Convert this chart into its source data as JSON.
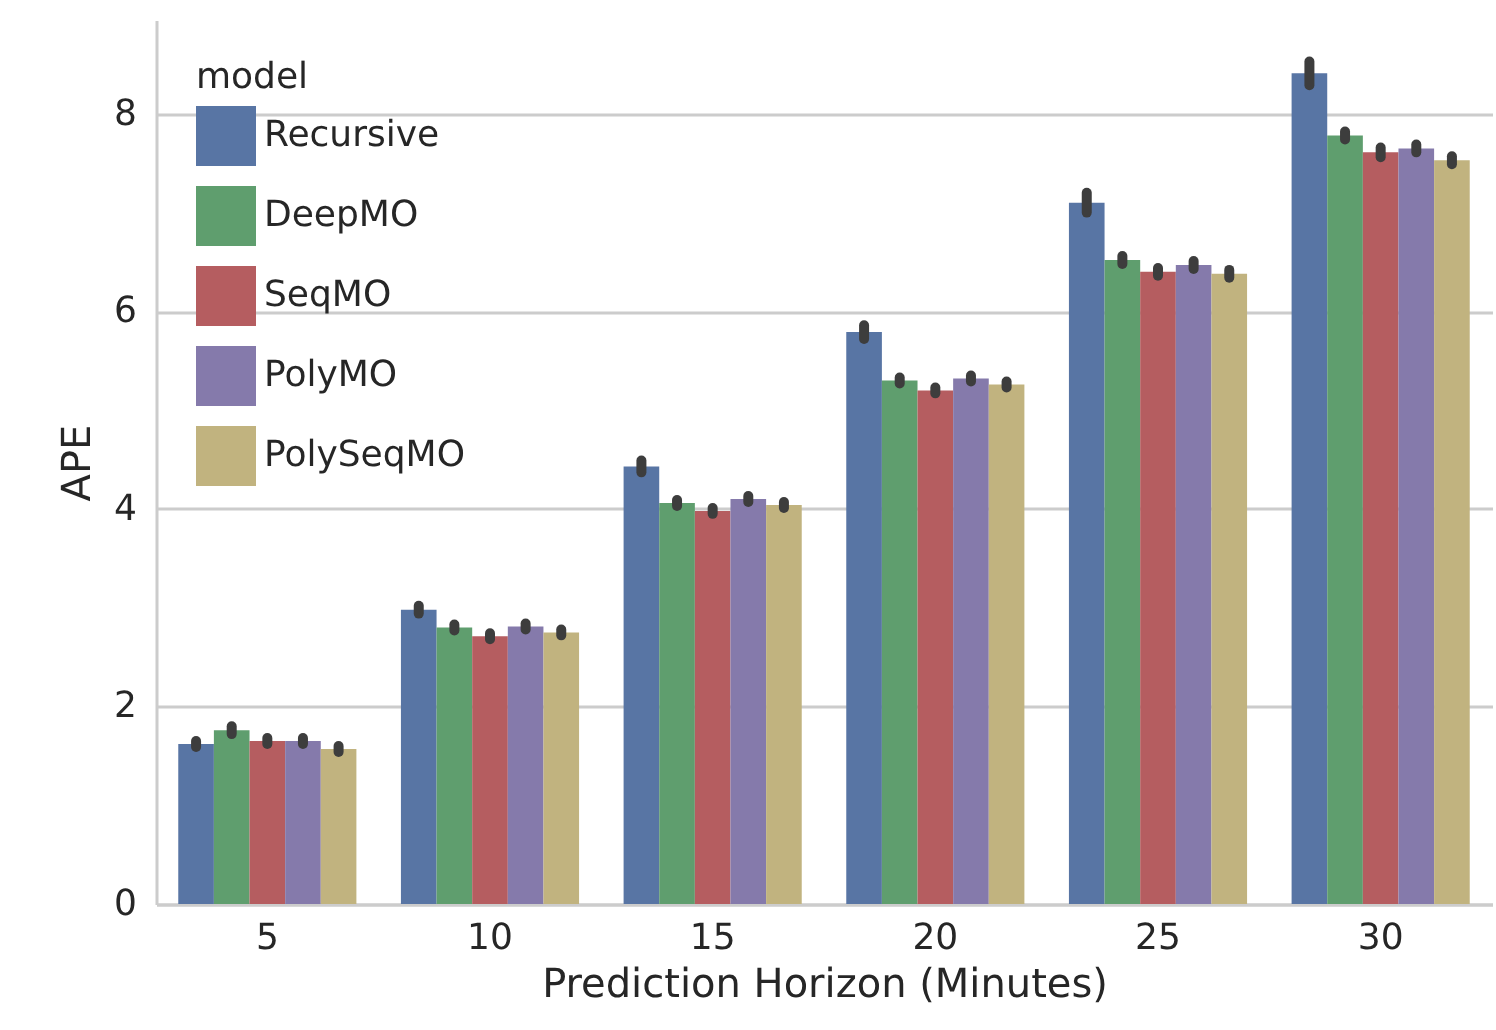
{
  "chart_data": {
    "type": "bar",
    "xlabel": "Prediction Horizon (Minutes)",
    "ylabel": "APE",
    "legend_title": "model",
    "legend": "top left",
    "grid": "y",
    "categories": [
      "5",
      "10",
      "15",
      "20",
      "25",
      "30"
    ],
    "ylim": [
      0,
      8.95
    ],
    "yticks": [
      0,
      2,
      4,
      6,
      8
    ],
    "series": [
      {
        "name": "Recursive",
        "color": "#5875a4",
        "values": [
          1.62,
          2.98,
          4.43,
          5.79,
          7.1,
          8.41
        ],
        "errors": [
          0.03,
          0.04,
          0.06,
          0.07,
          0.1,
          0.12
        ]
      },
      {
        "name": "DeepMO",
        "color": "#5f9e6e",
        "values": [
          1.76,
          2.8,
          4.06,
          5.3,
          6.52,
          7.78
        ],
        "errors": [
          0.04,
          0.03,
          0.03,
          0.03,
          0.04,
          0.04
        ]
      },
      {
        "name": "SeqMO",
        "color": "#b55d60",
        "values": [
          1.65,
          2.71,
          3.98,
          5.2,
          6.4,
          7.61
        ],
        "errors": [
          0.03,
          0.03,
          0.03,
          0.03,
          0.04,
          0.05
        ]
      },
      {
        "name": "PolyMO",
        "color": "#857aab",
        "values": [
          1.65,
          2.81,
          4.1,
          5.32,
          6.47,
          7.65
        ],
        "errors": [
          0.03,
          0.03,
          0.03,
          0.03,
          0.04,
          0.04
        ]
      },
      {
        "name": "PolySeqMO",
        "color": "#c1b37f",
        "values": [
          1.57,
          2.75,
          4.04,
          5.26,
          6.38,
          7.53
        ],
        "errors": [
          0.03,
          0.03,
          0.03,
          0.03,
          0.04,
          0.04
        ]
      }
    ]
  }
}
